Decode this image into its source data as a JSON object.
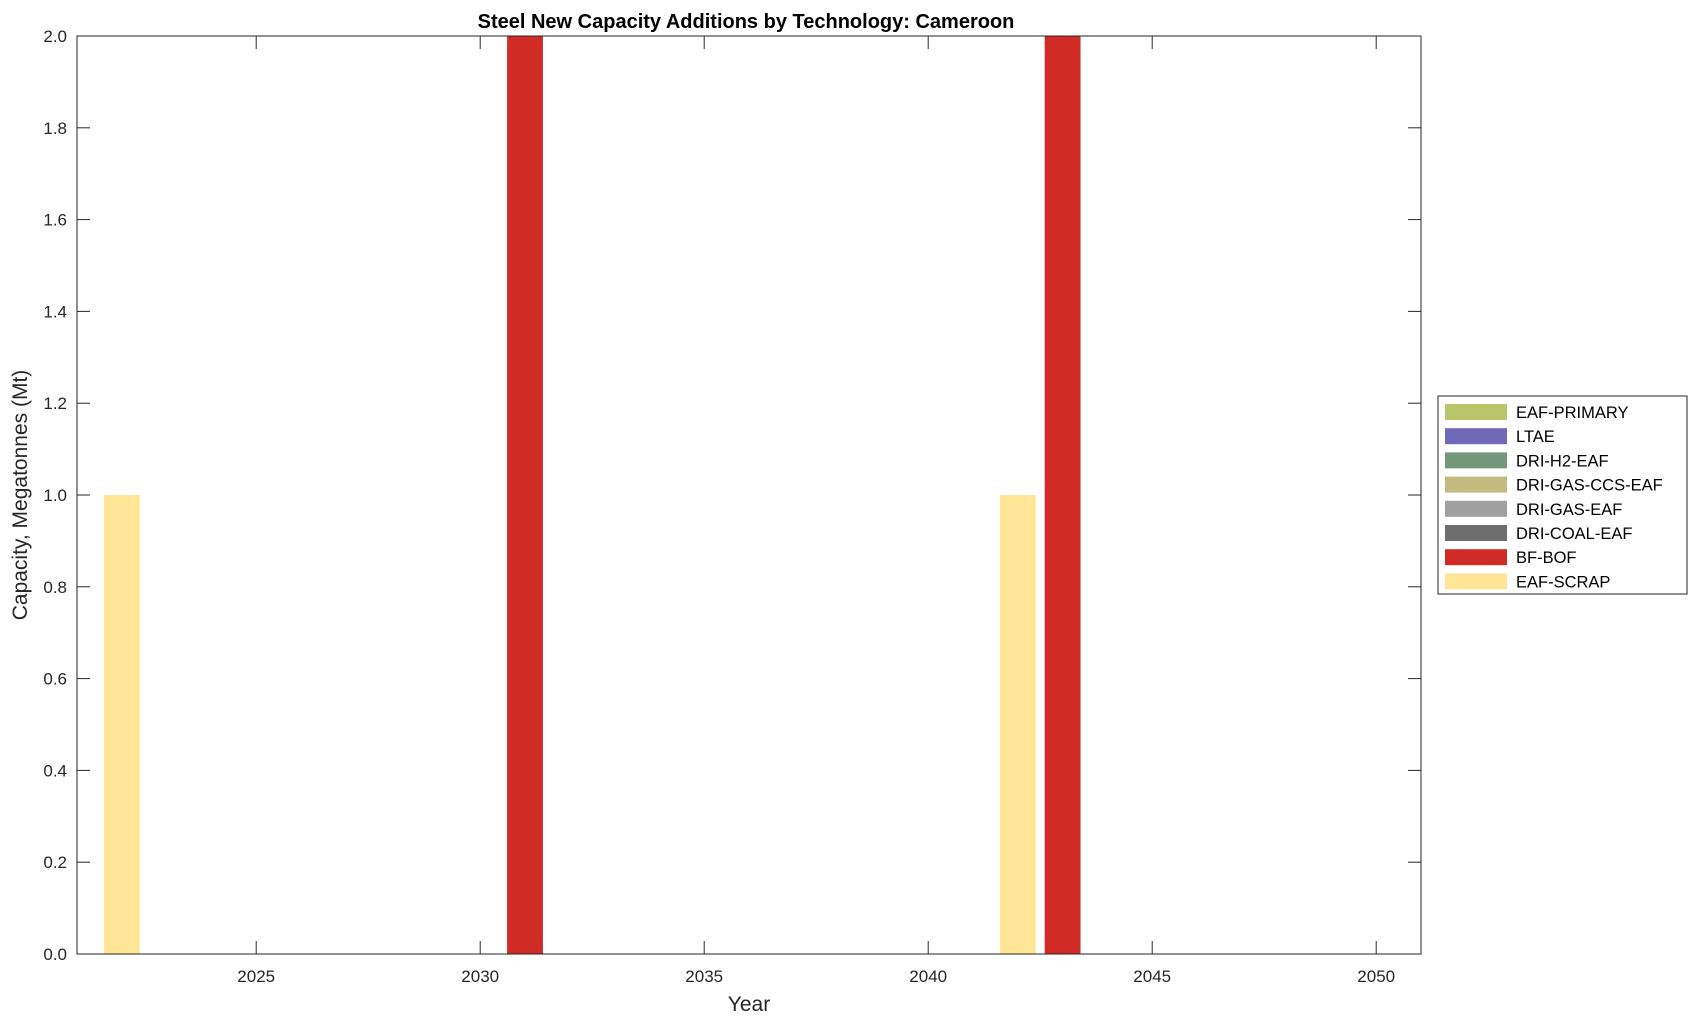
{
  "chart_data": {
    "type": "bar",
    "stacked": true,
    "title": "Steel New Capacity Additions by Technology: Cameroon",
    "xlabel": "Year",
    "ylabel": "Capacity, Megatonnes (Mt)",
    "xlim": [
      2021,
      2051
    ],
    "ylim": [
      0,
      2
    ],
    "xticks": [
      2025,
      2030,
      2035,
      2040,
      2045,
      2050
    ],
    "yticks": [
      0,
      0.2,
      0.4,
      0.6,
      0.8,
      1.0,
      1.2,
      1.4,
      1.6,
      1.8,
      2.0
    ],
    "ytick_labels": [
      "0.0",
      "0.2",
      "0.4",
      "0.6",
      "0.8",
      "1.0",
      "1.2",
      "1.4",
      "1.6",
      "1.8",
      "2.0"
    ],
    "grid": false,
    "legend_position": "right",
    "series": [
      {
        "name": "EAF-PRIMARY",
        "color": "#b9c56a",
        "points": []
      },
      {
        "name": "LTAE",
        "color": "#6f69b8",
        "points": []
      },
      {
        "name": "DRI-H2-EAF",
        "color": "#74967a",
        "points": []
      },
      {
        "name": "DRI-GAS-CCS-EAF",
        "color": "#c2bb7e",
        "points": []
      },
      {
        "name": "DRI-GAS-EAF",
        "color": "#a0a0a0",
        "points": []
      },
      {
        "name": "DRI-COAL-EAF",
        "color": "#6e6e6e",
        "points": []
      },
      {
        "name": "BF-BOF",
        "color": "#d12b26",
        "points": [
          {
            "x": 2031,
            "y": 2.0
          },
          {
            "x": 2043,
            "y": 2.0
          }
        ]
      },
      {
        "name": "EAF-SCRAP",
        "color": "#ffe596",
        "points": [
          {
            "x": 2022,
            "y": 1.0
          },
          {
            "x": 2042,
            "y": 1.0
          }
        ]
      }
    ]
  }
}
